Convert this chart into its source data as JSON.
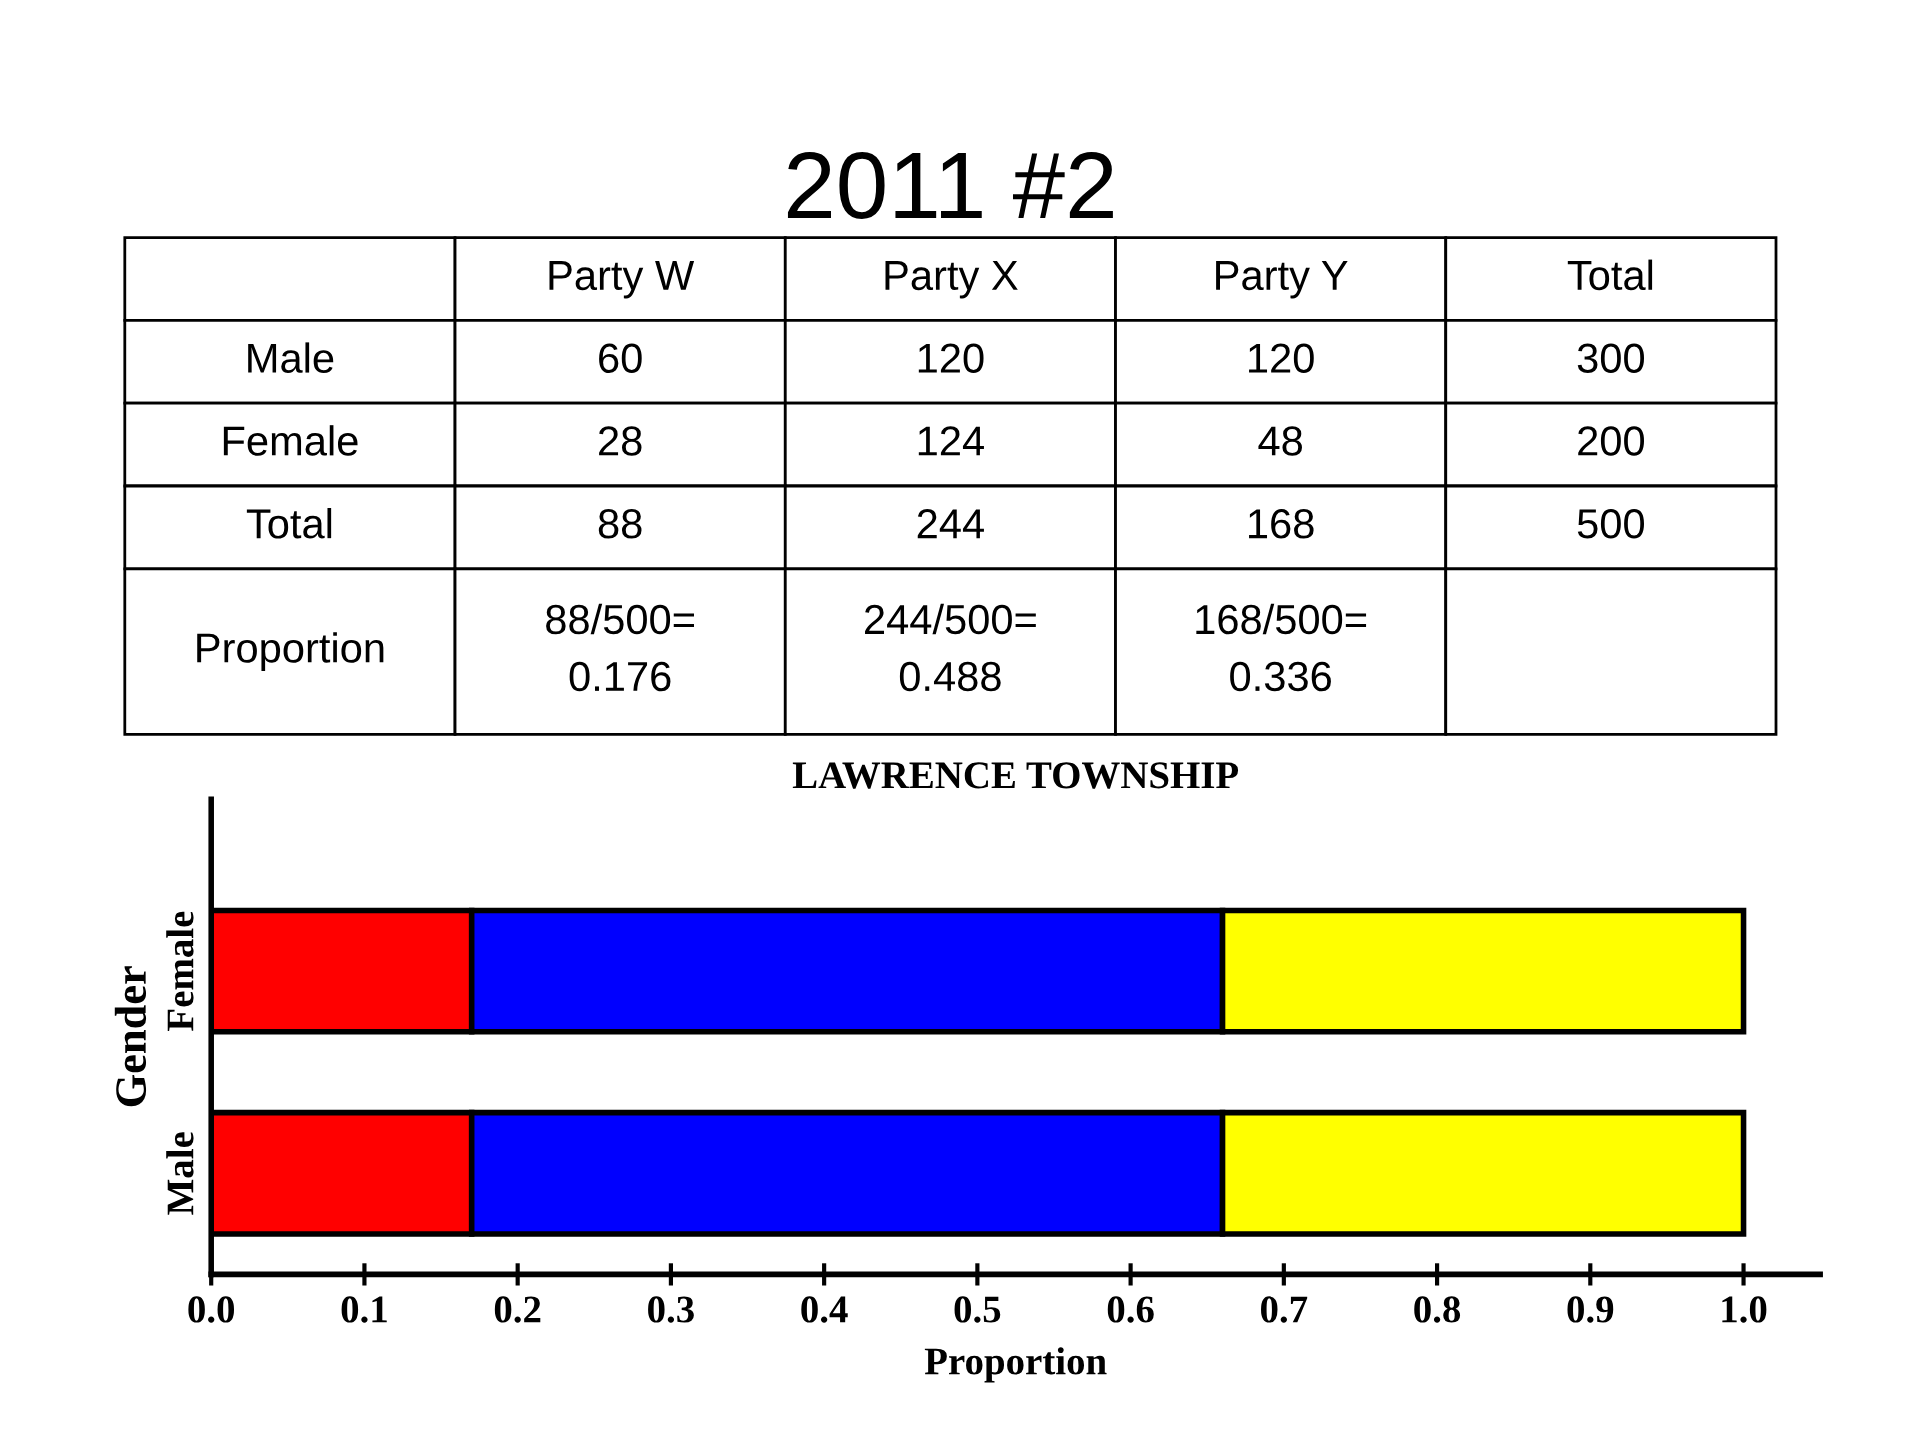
{
  "chart_data": [
    {
      "type": "other",
      "title": "2011 #2",
      "categories": [
        "Party W",
        "Party X",
        "Party Y",
        "Total"
      ],
      "y_categories": [
        "Male",
        "Female",
        "Total",
        "Proportion"
      ],
      "cell_labels": [
        [
          "60",
          "120",
          "120",
          "300"
        ],
        [
          "28",
          "124",
          "48",
          "200"
        ],
        [
          "88",
          "244",
          "168",
          "500"
        ],
        [
          "88/500=\n0.176",
          "244/500=\n0.488",
          "168/500=\n0.336",
          null
        ]
      ]
    },
    {
      "type": "bar",
      "orientation": "horizontal",
      "stacked": true,
      "title": "LAWRENCE TOWNSHIP",
      "xlabel": "Proportion",
      "ylabel": "Gender",
      "categories": [
        "Female",
        "Male"
      ],
      "series": [
        {
          "color": "#ff0000",
          "values": [
            0.17,
            0.17
          ]
        },
        {
          "color": "#0000ff",
          "values": [
            0.49,
            0.49
          ]
        },
        {
          "color": "#ffff00",
          "values": [
            0.34,
            0.34
          ]
        }
      ],
      "xlim": [
        0,
        1.05
      ],
      "xticks": [
        {
          "value": 0,
          "label": "0.0"
        },
        0.1,
        0.2,
        0.3,
        0.4,
        0.5,
        0.6,
        0.7,
        0.8,
        0.9,
        {
          "value": 1,
          "label": "1.0"
        }
      ],
      "grid": false,
      "legend": false
    }
  ]
}
